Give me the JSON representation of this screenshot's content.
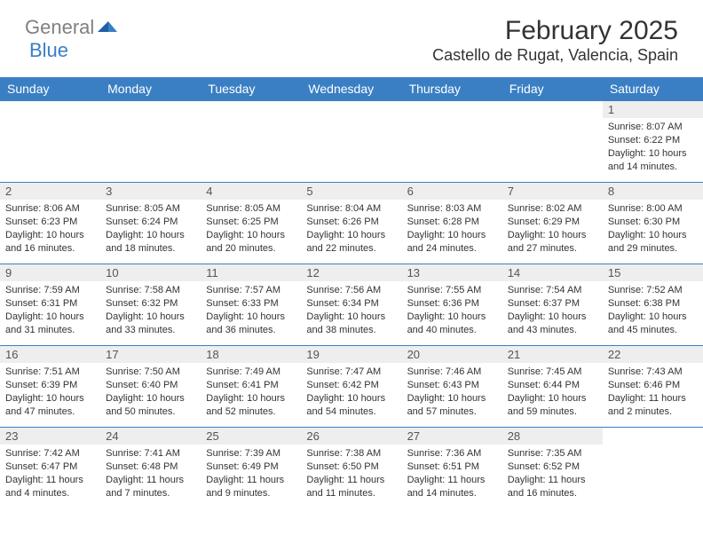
{
  "brand": {
    "text1": "General",
    "text2": "Blue"
  },
  "title": "February 2025",
  "location": "Castello de Rugat, Valencia, Spain",
  "colors": {
    "header_bg": "#3a7fc4",
    "header_text": "#ffffff",
    "daynum_bg": "#eeeeee",
    "border": "#3a7fc4",
    "page_bg": "#ffffff",
    "body_text": "#333333",
    "logo_gray": "#808080",
    "logo_blue": "#3a7fc4"
  },
  "weekdays": [
    "Sunday",
    "Monday",
    "Tuesday",
    "Wednesday",
    "Thursday",
    "Friday",
    "Saturday"
  ],
  "layout": {
    "first_weekday_index": 6,
    "days_in_month": 28
  },
  "days": {
    "1": {
      "sunrise": "8:07 AM",
      "sunset": "6:22 PM",
      "daylight": "10 hours and 14 minutes."
    },
    "2": {
      "sunrise": "8:06 AM",
      "sunset": "6:23 PM",
      "daylight": "10 hours and 16 minutes."
    },
    "3": {
      "sunrise": "8:05 AM",
      "sunset": "6:24 PM",
      "daylight": "10 hours and 18 minutes."
    },
    "4": {
      "sunrise": "8:05 AM",
      "sunset": "6:25 PM",
      "daylight": "10 hours and 20 minutes."
    },
    "5": {
      "sunrise": "8:04 AM",
      "sunset": "6:26 PM",
      "daylight": "10 hours and 22 minutes."
    },
    "6": {
      "sunrise": "8:03 AM",
      "sunset": "6:28 PM",
      "daylight": "10 hours and 24 minutes."
    },
    "7": {
      "sunrise": "8:02 AM",
      "sunset": "6:29 PM",
      "daylight": "10 hours and 27 minutes."
    },
    "8": {
      "sunrise": "8:00 AM",
      "sunset": "6:30 PM",
      "daylight": "10 hours and 29 minutes."
    },
    "9": {
      "sunrise": "7:59 AM",
      "sunset": "6:31 PM",
      "daylight": "10 hours and 31 minutes."
    },
    "10": {
      "sunrise": "7:58 AM",
      "sunset": "6:32 PM",
      "daylight": "10 hours and 33 minutes."
    },
    "11": {
      "sunrise": "7:57 AM",
      "sunset": "6:33 PM",
      "daylight": "10 hours and 36 minutes."
    },
    "12": {
      "sunrise": "7:56 AM",
      "sunset": "6:34 PM",
      "daylight": "10 hours and 38 minutes."
    },
    "13": {
      "sunrise": "7:55 AM",
      "sunset": "6:36 PM",
      "daylight": "10 hours and 40 minutes."
    },
    "14": {
      "sunrise": "7:54 AM",
      "sunset": "6:37 PM",
      "daylight": "10 hours and 43 minutes."
    },
    "15": {
      "sunrise": "7:52 AM",
      "sunset": "6:38 PM",
      "daylight": "10 hours and 45 minutes."
    },
    "16": {
      "sunrise": "7:51 AM",
      "sunset": "6:39 PM",
      "daylight": "10 hours and 47 minutes."
    },
    "17": {
      "sunrise": "7:50 AM",
      "sunset": "6:40 PM",
      "daylight": "10 hours and 50 minutes."
    },
    "18": {
      "sunrise": "7:49 AM",
      "sunset": "6:41 PM",
      "daylight": "10 hours and 52 minutes."
    },
    "19": {
      "sunrise": "7:47 AM",
      "sunset": "6:42 PM",
      "daylight": "10 hours and 54 minutes."
    },
    "20": {
      "sunrise": "7:46 AM",
      "sunset": "6:43 PM",
      "daylight": "10 hours and 57 minutes."
    },
    "21": {
      "sunrise": "7:45 AM",
      "sunset": "6:44 PM",
      "daylight": "10 hours and 59 minutes."
    },
    "22": {
      "sunrise": "7:43 AM",
      "sunset": "6:46 PM",
      "daylight": "11 hours and 2 minutes."
    },
    "23": {
      "sunrise": "7:42 AM",
      "sunset": "6:47 PM",
      "daylight": "11 hours and 4 minutes."
    },
    "24": {
      "sunrise": "7:41 AM",
      "sunset": "6:48 PM",
      "daylight": "11 hours and 7 minutes."
    },
    "25": {
      "sunrise": "7:39 AM",
      "sunset": "6:49 PM",
      "daylight": "11 hours and 9 minutes."
    },
    "26": {
      "sunrise": "7:38 AM",
      "sunset": "6:50 PM",
      "daylight": "11 hours and 11 minutes."
    },
    "27": {
      "sunrise": "7:36 AM",
      "sunset": "6:51 PM",
      "daylight": "11 hours and 14 minutes."
    },
    "28": {
      "sunrise": "7:35 AM",
      "sunset": "6:52 PM",
      "daylight": "11 hours and 16 minutes."
    }
  },
  "labels": {
    "sunrise": "Sunrise:",
    "sunset": "Sunset:",
    "daylight": "Daylight:"
  }
}
